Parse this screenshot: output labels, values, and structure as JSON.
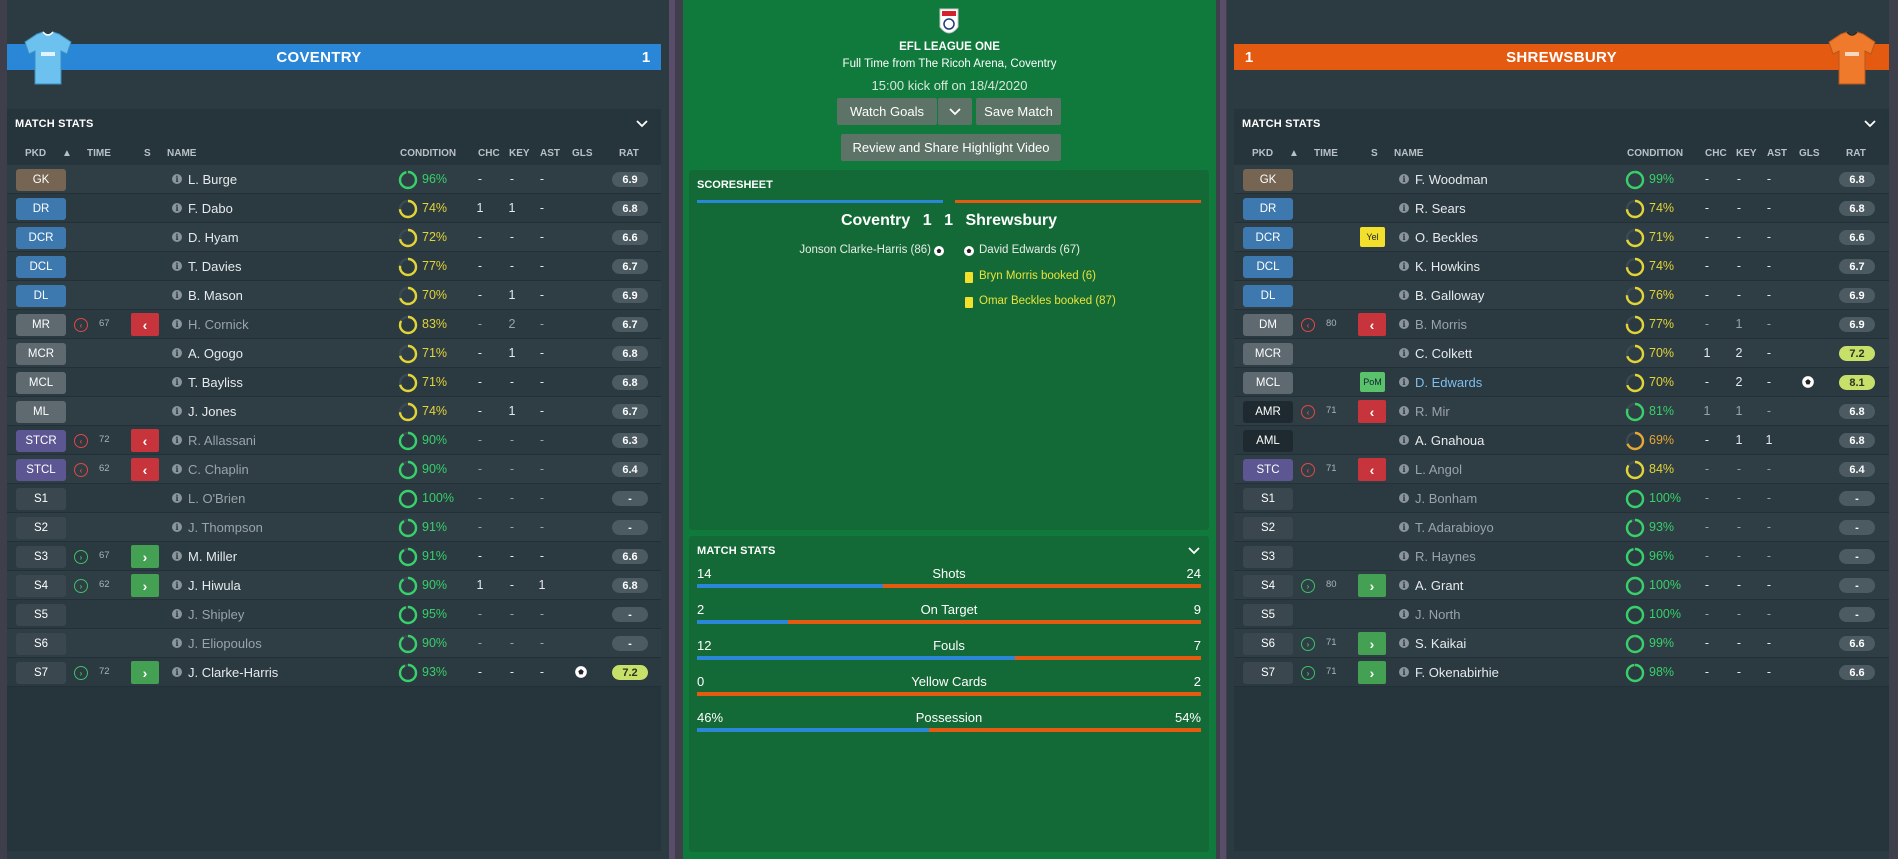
{
  "header": {
    "competition": "EFL LEAGUE ONE",
    "venue": "Full Time from The Ricoh Arena, Coventry",
    "kickoff": "15:00 kick off on 18/4/2020",
    "watch_goals": "Watch Goals",
    "save_match": "Save Match",
    "review_share": "Review and Share Highlight Video"
  },
  "colors": {
    "home": "#2a86d6",
    "away": "#e45a10",
    "pitch": "#0f7a3c"
  },
  "columns": {
    "pkd": "PKD",
    "time": "TIME",
    "s": "S",
    "name": "NAME",
    "condition": "CONDITION",
    "chc": "CHC",
    "key": "KEY",
    "ast": "AST",
    "gls": "GLS",
    "rat": "RAT"
  },
  "home": {
    "name": "COVENTRY",
    "score": "1",
    "panel_title": "MATCH STATS",
    "players": [
      {
        "pos": "GK",
        "pc": "gk",
        "name": "L. Burge",
        "cond": "96%",
        "cc": "green",
        "chc": "-",
        "key": "-",
        "ast": "-",
        "rat": "6.9"
      },
      {
        "pos": "DR",
        "pc": "def",
        "name": "F. Dabo",
        "cond": "74%",
        "cc": "yellow",
        "chc": "1",
        "key": "1",
        "ast": "-",
        "rat": "6.8"
      },
      {
        "pos": "DCR",
        "pc": "def",
        "name": "D. Hyam",
        "cond": "72%",
        "cc": "yellow",
        "chc": "-",
        "key": "-",
        "ast": "-",
        "rat": "6.6"
      },
      {
        "pos": "DCL",
        "pc": "def",
        "name": "T. Davies",
        "cond": "77%",
        "cc": "yellow",
        "chc": "-",
        "key": "-",
        "ast": "-",
        "rat": "6.7"
      },
      {
        "pos": "DL",
        "pc": "def",
        "name": "B. Mason",
        "cond": "70%",
        "cc": "yellow",
        "chc": "-",
        "key": "1",
        "ast": "-",
        "rat": "6.9"
      },
      {
        "pos": "MR",
        "pc": "mid",
        "sub": "out",
        "time": "67",
        "name": "H. Cornick",
        "dim": true,
        "cond": "83%",
        "cc": "yellow",
        "chc": "-",
        "key": "2",
        "ast": "-",
        "rat": "6.7"
      },
      {
        "pos": "MCR",
        "pc": "mid",
        "name": "A. Ogogo",
        "cond": "71%",
        "cc": "yellow",
        "chc": "-",
        "key": "1",
        "ast": "-",
        "rat": "6.8"
      },
      {
        "pos": "MCL",
        "pc": "mid",
        "name": "T. Bayliss",
        "cond": "71%",
        "cc": "yellow",
        "chc": "-",
        "key": "-",
        "ast": "-",
        "rat": "6.8"
      },
      {
        "pos": "ML",
        "pc": "mid",
        "name": "J. Jones",
        "cond": "74%",
        "cc": "yellow",
        "chc": "-",
        "key": "1",
        "ast": "-",
        "rat": "6.7"
      },
      {
        "pos": "STCR",
        "pc": "att",
        "sub": "out",
        "time": "72",
        "name": "R. Allassani",
        "dim": true,
        "cond": "90%",
        "cc": "green",
        "chc": "-",
        "key": "-",
        "ast": "-",
        "rat": "6.3"
      },
      {
        "pos": "STCL",
        "pc": "att",
        "sub": "out",
        "time": "62",
        "name": "C. Chaplin",
        "dim": true,
        "cond": "90%",
        "cc": "green",
        "chc": "-",
        "key": "-",
        "ast": "-",
        "rat": "6.4"
      },
      {
        "pos": "S1",
        "pc": "sub",
        "name": "L. O'Brien",
        "dim": true,
        "cond": "100%",
        "cc": "green",
        "chc": "-",
        "key": "-",
        "ast": "-",
        "rat": "-"
      },
      {
        "pos": "S2",
        "pc": "sub",
        "name": "J. Thompson",
        "dim": true,
        "cond": "91%",
        "cc": "green",
        "chc": "-",
        "key": "-",
        "ast": "-",
        "rat": "-"
      },
      {
        "pos": "S3",
        "pc": "sub",
        "sub": "in",
        "time": "67",
        "name": "M. Miller",
        "cond": "91%",
        "cc": "green",
        "chc": "-",
        "key": "-",
        "ast": "-",
        "rat": "6.6"
      },
      {
        "pos": "S4",
        "pc": "sub",
        "sub": "in",
        "time": "62",
        "name": "J. Hiwula",
        "cond": "90%",
        "cc": "green",
        "chc": "1",
        "key": "-",
        "ast": "1",
        "rat": "6.8"
      },
      {
        "pos": "S5",
        "pc": "sub",
        "name": "J. Shipley",
        "dim": true,
        "cond": "95%",
        "cc": "green",
        "chc": "-",
        "key": "-",
        "ast": "-",
        "rat": "-"
      },
      {
        "pos": "S6",
        "pc": "sub",
        "name": "J. Eliopoulos",
        "dim": true,
        "cond": "90%",
        "cc": "green",
        "chc": "-",
        "key": "-",
        "ast": "-",
        "rat": "-"
      },
      {
        "pos": "S7",
        "pc": "sub",
        "sub": "in",
        "time": "72",
        "name": "J. Clarke-Harris",
        "cond": "93%",
        "cc": "green",
        "chc": "-",
        "key": "-",
        "ast": "-",
        "gls": "ball",
        "rat": "7.2",
        "hi": true
      }
    ]
  },
  "away": {
    "name": "SHREWSBURY",
    "score": "1",
    "panel_title": "MATCH STATS",
    "players": [
      {
        "pos": "GK",
        "pc": "gk",
        "name": "F. Woodman",
        "cond": "99%",
        "cc": "green",
        "chc": "-",
        "key": "-",
        "ast": "-",
        "rat": "6.8"
      },
      {
        "pos": "DR",
        "pc": "def",
        "name": "R. Sears",
        "cond": "74%",
        "cc": "yellow",
        "chc": "-",
        "key": "-",
        "ast": "-",
        "rat": "6.8"
      },
      {
        "pos": "DCR",
        "pc": "def",
        "badge": "Yel",
        "name": "O. Beckles",
        "cond": "71%",
        "cc": "yellow",
        "chc": "-",
        "key": "-",
        "ast": "-",
        "rat": "6.6"
      },
      {
        "pos": "DCL",
        "pc": "def",
        "name": "K. Howkins",
        "cond": "74%",
        "cc": "yellow",
        "chc": "-",
        "key": "-",
        "ast": "-",
        "rat": "6.7"
      },
      {
        "pos": "DL",
        "pc": "def",
        "name": "B. Galloway",
        "cond": "76%",
        "cc": "yellow",
        "chc": "-",
        "key": "-",
        "ast": "-",
        "rat": "6.9"
      },
      {
        "pos": "DM",
        "pc": "mid",
        "sub": "out",
        "time": "80",
        "name": "B. Morris",
        "dim": true,
        "cond": "77%",
        "cc": "yellow",
        "chc": "-",
        "key": "1",
        "ast": "-",
        "rat": "6.9"
      },
      {
        "pos": "MCR",
        "pc": "mid",
        "name": "C. Colkett",
        "cond": "70%",
        "cc": "yellow",
        "chc": "1",
        "key": "2",
        "ast": "-",
        "rat": "7.2",
        "hi": true
      },
      {
        "pos": "MCL",
        "pc": "mid",
        "badge": "PoM",
        "name": "D. Edwards",
        "pom": true,
        "cond": "70%",
        "cc": "yellow",
        "chc": "-",
        "key": "2",
        "ast": "-",
        "gls": "ball",
        "rat": "8.1",
        "hi": true
      },
      {
        "pos": "AMR",
        "pc": "dark",
        "sub": "out",
        "time": "71",
        "name": "R. Mir",
        "dim": true,
        "cond": "81%",
        "cc": "green",
        "chc": "1",
        "key": "1",
        "ast": "-",
        "rat": "6.8"
      },
      {
        "pos": "AML",
        "pc": "dark",
        "name": "A. Gnahoua",
        "cond": "69%",
        "cc": "orange",
        "chc": "-",
        "key": "1",
        "ast": "1",
        "rat": "6.8"
      },
      {
        "pos": "STC",
        "pc": "att",
        "sub": "out",
        "time": "71",
        "name": "L. Angol",
        "dim": true,
        "cond": "84%",
        "cc": "yellow",
        "chc": "-",
        "key": "-",
        "ast": "-",
        "rat": "6.4"
      },
      {
        "pos": "S1",
        "pc": "sub",
        "name": "J. Bonham",
        "dim": true,
        "cond": "100%",
        "cc": "green",
        "chc": "-",
        "key": "-",
        "ast": "-",
        "rat": "-"
      },
      {
        "pos": "S2",
        "pc": "sub",
        "name": "T. Adarabioyo",
        "dim": true,
        "cond": "93%",
        "cc": "green",
        "chc": "-",
        "key": "-",
        "ast": "-",
        "rat": "-"
      },
      {
        "pos": "S3",
        "pc": "sub",
        "name": "R. Haynes",
        "dim": true,
        "cond": "96%",
        "cc": "green",
        "chc": "-",
        "key": "-",
        "ast": "-",
        "rat": "-"
      },
      {
        "pos": "S4",
        "pc": "sub",
        "sub": "in",
        "time": "80",
        "name": "A. Grant",
        "cond": "100%",
        "cc": "green",
        "chc": "-",
        "key": "-",
        "ast": "-",
        "rat": "-"
      },
      {
        "pos": "S5",
        "pc": "sub",
        "name": "J. North",
        "dim": true,
        "cond": "100%",
        "cc": "green",
        "chc": "-",
        "key": "-",
        "ast": "-",
        "rat": "-"
      },
      {
        "pos": "S6",
        "pc": "sub",
        "sub": "in",
        "time": "71",
        "name": "S. Kaikai",
        "cond": "99%",
        "cc": "green",
        "chc": "-",
        "key": "-",
        "ast": "-",
        "rat": "6.6"
      },
      {
        "pos": "S7",
        "pc": "sub",
        "sub": "in",
        "time": "71",
        "name": "F. Okenabirhie",
        "cond": "98%",
        "cc": "green",
        "chc": "-",
        "key": "-",
        "ast": "-",
        "rat": "6.6"
      }
    ]
  },
  "scoresheet": {
    "title": "SCORESHEET",
    "home_team": "Coventry",
    "home_score": "1",
    "away_score": "1",
    "away_team": "Shrewsbury",
    "home_events": [
      "Jonson Clarke-Harris (86)"
    ],
    "away_events": [
      "David Edwards (67)"
    ],
    "away_cards": [
      "Bryn Morris booked (6)",
      "Omar Beckles booked (87)"
    ]
  },
  "match_stats": {
    "title": "MATCH STATS",
    "rows": [
      {
        "label": "Shots",
        "home": "14",
        "away": "24",
        "share": 0.37
      },
      {
        "label": "On Target",
        "home": "2",
        "away": "9",
        "share": 0.18
      },
      {
        "label": "Fouls",
        "home": "12",
        "away": "7",
        "share": 0.63
      },
      {
        "label": "Yellow Cards",
        "home": "0",
        "away": "2",
        "share": 0.0
      },
      {
        "label": "Possession",
        "home": "46%",
        "away": "54%",
        "share": 0.46
      }
    ]
  }
}
